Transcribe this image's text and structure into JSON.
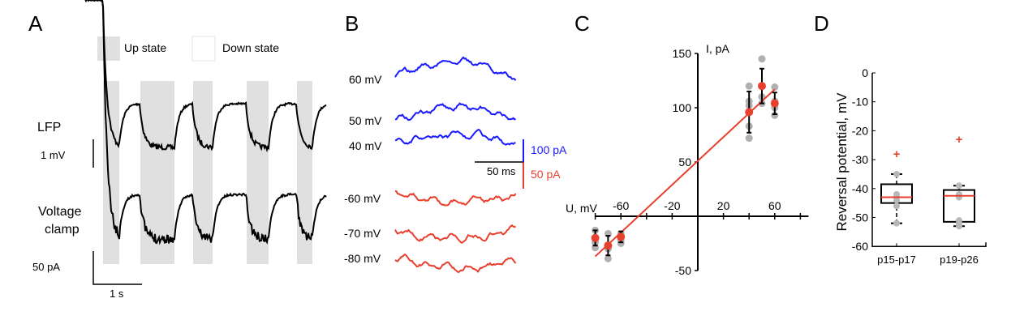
{
  "panels": {
    "a": "A",
    "b": "B",
    "c": "C",
    "d": "D"
  },
  "panel_a": {
    "legend": {
      "up": "Up state",
      "down": "Down state"
    },
    "labels": {
      "lfp": "LFP",
      "vc1": "Voltage",
      "vc2": "clamp"
    },
    "scales": {
      "mv": "1 mV",
      "pa": "50 pA",
      "time": "1 s"
    },
    "colors": {
      "up_band": "#e0e0e0",
      "trace": "#000000"
    }
  },
  "panel_b": {
    "blue_labels": [
      "60 mV",
      "50 mV",
      "40 mV"
    ],
    "red_labels": [
      "-60 mV",
      "-70 mV",
      "-80 mV"
    ],
    "scales": {
      "blue": "100 pA",
      "red": "50 pA",
      "time": "50 ms"
    },
    "colors": {
      "blue": "#1a1aff",
      "red": "#e8402e"
    }
  },
  "chart_data": [
    {
      "type": "scatter",
      "panel": "C",
      "xlabel": "U, mV",
      "ylabel": "I, pA",
      "xlim": [
        -80,
        80
      ],
      "ylim": [
        -50,
        150
      ],
      "xticks": [
        -60,
        -20,
        20,
        60
      ],
      "yticks": [
        150,
        100,
        50,
        -50
      ],
      "means": [
        {
          "x": -80,
          "y": -20,
          "err": 7
        },
        {
          "x": -70,
          "y": -27,
          "err": 9
        },
        {
          "x": -60,
          "y": -19,
          "err": 5
        },
        {
          "x": 40,
          "y": 96,
          "err": 19
        },
        {
          "x": 50,
          "y": 120,
          "err": 16
        },
        {
          "x": 60,
          "y": 104,
          "err": 10
        }
      ],
      "points": [
        [
          -80,
          -13
        ],
        [
          -80,
          -24
        ],
        [
          -80,
          -29
        ],
        [
          -70,
          -16
        ],
        [
          -70,
          -30
        ],
        [
          -70,
          -39
        ],
        [
          -60,
          -16
        ],
        [
          -60,
          -22
        ],
        [
          -60,
          -25
        ],
        [
          40,
          120
        ],
        [
          40,
          106
        ],
        [
          40,
          102
        ],
        [
          40,
          83
        ],
        [
          40,
          72
        ],
        [
          50,
          145
        ],
        [
          50,
          110
        ],
        [
          50,
          104
        ],
        [
          60,
          119
        ],
        [
          60,
          106
        ],
        [
          60,
          100
        ],
        [
          60,
          93
        ]
      ],
      "fit": {
        "slope": 1.1,
        "intercept": 51
      },
      "colors": {
        "mean": "#e8402e",
        "point": "#b0b0b0",
        "fit": "#e8402e"
      }
    },
    {
      "type": "box",
      "panel": "D",
      "ylabel": "Reversal potential, mV",
      "ylim": [
        -60,
        0
      ],
      "yticks": [
        0,
        -10,
        -20,
        -30,
        -40,
        -50,
        -60
      ],
      "categories": [
        "p15-p17",
        "p19-p26"
      ],
      "boxes": [
        {
          "q1": -45,
          "median": -43,
          "q3": -38.5,
          "whisker_low": -52,
          "whisker_high": -35,
          "outlier": -28,
          "points": [
            -35,
            -42,
            -43,
            -44,
            -46,
            -52
          ]
        },
        {
          "q1": -51.5,
          "median": -42.5,
          "q3": -40.5,
          "whisker_low": -53,
          "whisker_high": -39,
          "outlier": -23,
          "points": [
            -39,
            -42,
            -43,
            -51,
            -52,
            -53
          ]
        }
      ]
    }
  ]
}
